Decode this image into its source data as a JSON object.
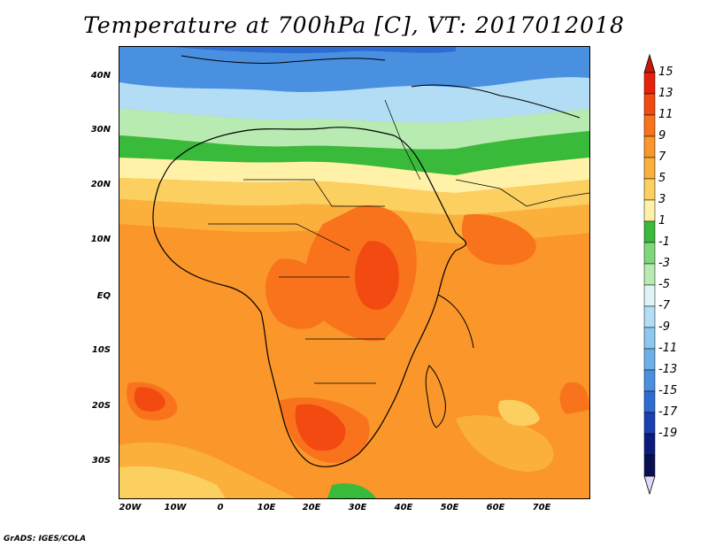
{
  "title": "Temperature at 700hPa [C], VT: 2017012018",
  "footer": "GrADS: IGES/COLA",
  "map": {
    "lat_labels": [
      "40N",
      "30N",
      "20N",
      "10N",
      "EQ",
      "10S",
      "20S",
      "30S"
    ],
    "lon_labels": [
      "20W",
      "10W",
      "0",
      "10E",
      "20E",
      "30E",
      "40E",
      "50E",
      "60E",
      "70E"
    ],
    "variable": "Temperature at 700hPa",
    "units": "C",
    "valid_time": "2017012018"
  },
  "colorbar": {
    "labels": [
      "15",
      "13",
      "11",
      "9",
      "7",
      "5",
      "3",
      "1",
      "-1",
      "-3",
      "-5",
      "-7",
      "-9",
      "-11",
      "-13",
      "-15",
      "-17",
      "-19"
    ],
    "colors": [
      "#e8200c",
      "#f24a10",
      "#f8731c",
      "#fa962a",
      "#fbb03c",
      "#fcd060",
      "#fff2a8",
      "#3aba3a",
      "#7ed87a",
      "#b7ebb2",
      "#dff4f6",
      "#b3ddf5",
      "#8ec8f0",
      "#6cb0ea",
      "#4a90e0",
      "#2e6cd4",
      "#1a40b4",
      "#0b1b7e",
      "#081050"
    ],
    "top_arrow_color": "#c81a08",
    "bottom_arrow_color": "#e0d8f8"
  }
}
